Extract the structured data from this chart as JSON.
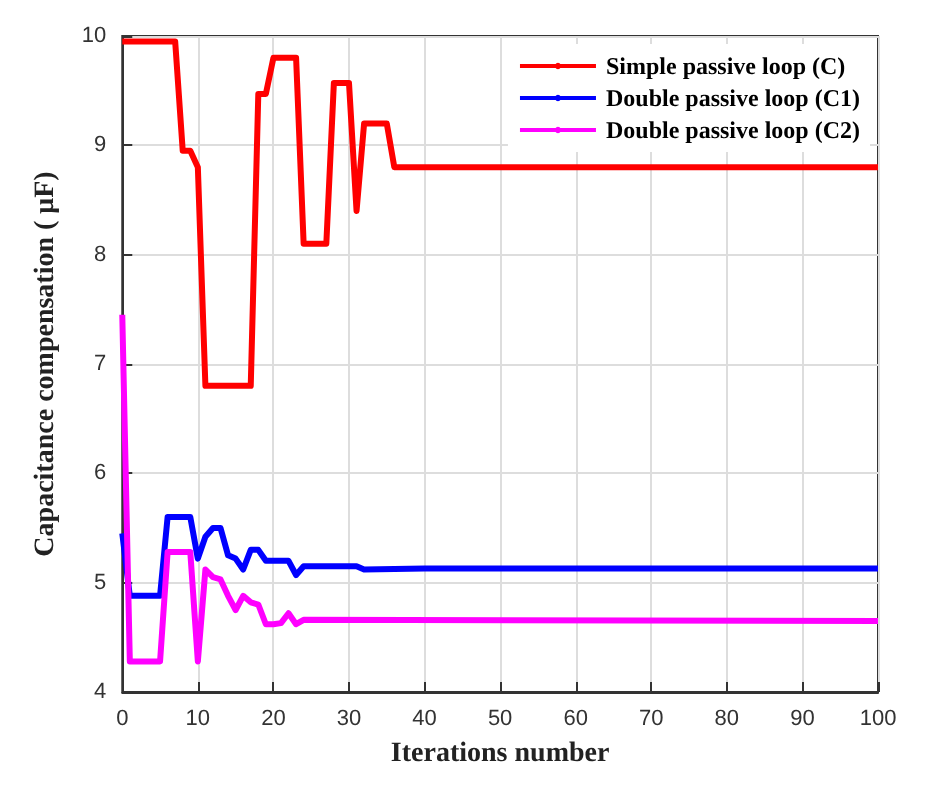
{
  "chart_data": {
    "type": "line",
    "xlabel": "Iterations number",
    "ylabel": "Capacitance compensation ( μF)",
    "xlim": [
      0,
      100
    ],
    "ylim": [
      4,
      10
    ],
    "xticks": [
      0,
      10,
      20,
      30,
      40,
      50,
      60,
      70,
      80,
      90,
      100
    ],
    "yticks": [
      4,
      5,
      6,
      7,
      8,
      9,
      10
    ],
    "grid": true,
    "legend": "top right",
    "marker": "none",
    "line_style": "solid",
    "series": [
      {
        "name": "Simple passive loop (C)",
        "color": "#ff0000",
        "x": [
          0,
          7,
          8,
          9,
          10,
          11,
          17,
          18,
          19,
          20,
          23,
          24,
          27,
          28,
          30,
          31,
          32,
          35,
          36,
          100
        ],
        "values": [
          9.95,
          9.95,
          8.95,
          8.95,
          8.8,
          6.8,
          6.8,
          9.47,
          9.47,
          9.8,
          9.8,
          8.1,
          8.1,
          9.57,
          9.57,
          8.4,
          9.2,
          9.2,
          8.8,
          8.8
        ]
      },
      {
        "name": "Double passive loop (C1)",
        "color": "#0000ff",
        "x": [
          0,
          1,
          5,
          6,
          9,
          10,
          11,
          12,
          13,
          14,
          15,
          16,
          17,
          18,
          19,
          22,
          23,
          24,
          31,
          32,
          40,
          100
        ],
        "values": [
          5.45,
          4.88,
          4.88,
          5.6,
          5.6,
          5.22,
          5.42,
          5.5,
          5.5,
          5.25,
          5.22,
          5.12,
          5.3,
          5.3,
          5.2,
          5.2,
          5.07,
          5.15,
          5.15,
          5.12,
          5.13,
          5.13
        ]
      },
      {
        "name": "Double passive loop (C2)",
        "color": "#ff00ff",
        "x": [
          0,
          1,
          5,
          6,
          9,
          10,
          11,
          12,
          13,
          14,
          15,
          16,
          17,
          18,
          19,
          20,
          21,
          22,
          23,
          24,
          100
        ],
        "values": [
          7.45,
          4.28,
          4.28,
          5.28,
          5.28,
          4.28,
          5.12,
          5.05,
          5.03,
          4.88,
          4.75,
          4.88,
          4.82,
          4.8,
          4.62,
          4.62,
          4.63,
          4.72,
          4.62,
          4.66,
          4.65
        ]
      }
    ]
  }
}
